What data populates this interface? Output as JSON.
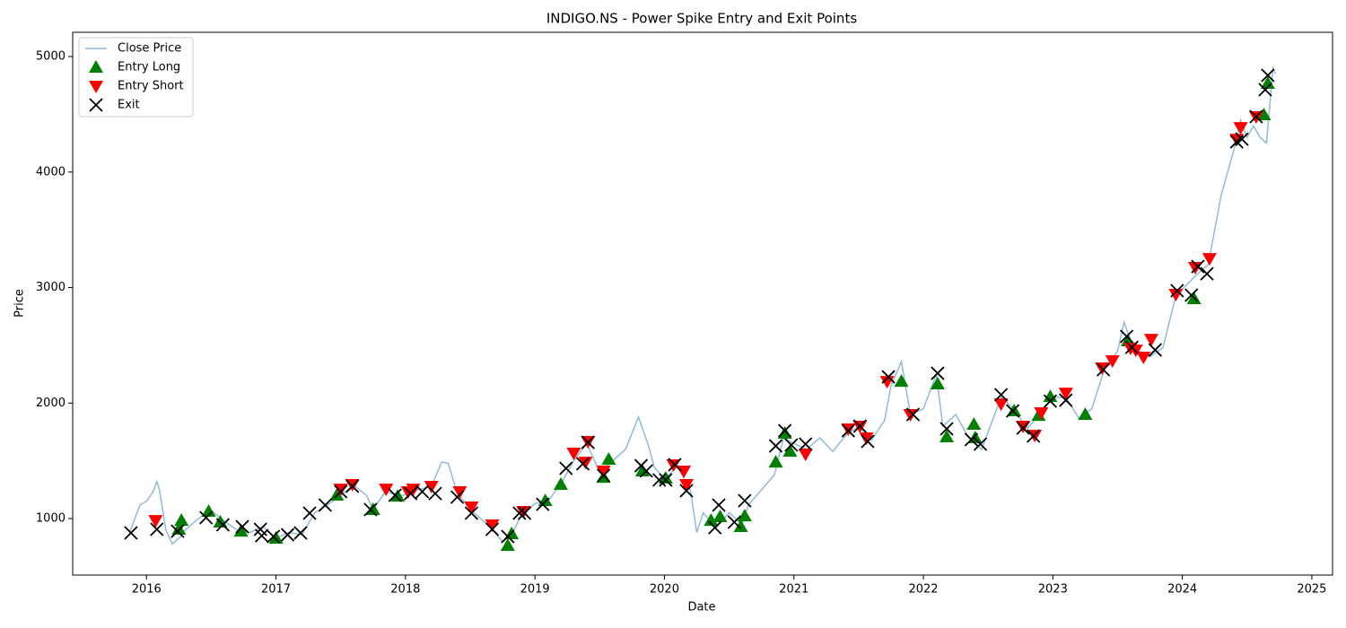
{
  "chart_data": {
    "type": "line",
    "title": "INDIGO.NS - Power Spike Entry and Exit Points",
    "xlabel": "Date",
    "ylabel": "Price",
    "xlim": [
      2015.43,
      2025.16
    ],
    "xticks": [
      2016,
      2017,
      2018,
      2019,
      2020,
      2021,
      2022,
      2023,
      2024,
      2025
    ],
    "ylim": [
      511,
      5210
    ],
    "yticks": [
      1000,
      2000,
      3000,
      4000,
      5000
    ],
    "grid": false,
    "legend": "upper left",
    "series": [
      {
        "name": "Close Price",
        "marker": "line",
        "color": "#1f77b4",
        "x": [
          2015.87,
          2015.95,
          2016.0,
          2016.05,
          2016.08,
          2016.1,
          2016.15,
          2016.2,
          2016.25,
          2016.3,
          2016.4,
          2016.5,
          2016.6,
          2016.7,
          2016.8,
          2016.9,
          2017.0,
          2017.1,
          2017.2,
          2017.3,
          2017.4,
          2017.5,
          2017.6,
          2017.7,
          2017.75,
          2017.85,
          2017.95,
          2018.1,
          2018.2,
          2018.28,
          2018.33,
          2018.4,
          2018.5,
          2018.65,
          2018.75,
          2018.82,
          2018.9,
          2019.0,
          2019.1,
          2019.2,
          2019.3,
          2019.4,
          2019.5,
          2019.6,
          2019.7,
          2019.8,
          2019.88,
          2019.92,
          2020.0,
          2020.1,
          2020.2,
          2020.25,
          2020.3,
          2020.4,
          2020.5,
          2020.6,
          2020.65,
          2020.75,
          2020.85,
          2020.92,
          2021.0,
          2021.1,
          2021.2,
          2021.3,
          2021.4,
          2021.5,
          2021.6,
          2021.7,
          2021.75,
          2021.83,
          2021.9,
          2022.0,
          2022.1,
          2022.15,
          2022.25,
          2022.35,
          2022.45,
          2022.6,
          2022.7,
          2022.8,
          2022.9,
          2023.0,
          2023.1,
          2023.2,
          2023.3,
          2023.4,
          2023.5,
          2023.55,
          2023.62,
          2023.75,
          2023.85,
          2023.95,
          2024.1,
          2024.2,
          2024.25,
          2024.3,
          2024.4,
          2024.45,
          2024.5,
          2024.55,
          2024.6,
          2024.65,
          2024.7,
          2024.72
        ],
        "values": [
          880,
          1120,
          1150,
          1230,
          1320,
          1250,
          900,
          780,
          830,
          900,
          1000,
          1070,
          980,
          900,
          880,
          930,
          830,
          880,
          860,
          1050,
          1120,
          1200,
          1290,
          1200,
          1080,
          1240,
          1190,
          1250,
          1280,
          1490,
          1480,
          1220,
          1080,
          930,
          800,
          860,
          1040,
          1130,
          1150,
          1300,
          1500,
          1650,
          1400,
          1500,
          1600,
          1880,
          1620,
          1450,
          1340,
          1450,
          1250,
          880,
          1050,
          920,
          1050,
          950,
          1120,
          1250,
          1380,
          1700,
          1650,
          1600,
          1700,
          1580,
          1720,
          1800,
          1680,
          1850,
          2150,
          2360,
          1900,
          1950,
          2250,
          1800,
          1900,
          1700,
          1600,
          2050,
          1950,
          1780,
          1900,
          2050,
          2050,
          1870,
          1950,
          2300,
          2450,
          2700,
          2480,
          2400,
          2480,
          2930,
          3100,
          3200,
          3500,
          3800,
          4200,
          4450,
          4300,
          4400,
          4300,
          4250,
          4900,
          4850
        ]
      },
      {
        "name": "Entry Long",
        "marker": "^",
        "color": "green",
        "x": [
          2016.25,
          2016.27,
          2016.48,
          2016.57,
          2016.73,
          2017.0,
          2017.47,
          2017.75,
          2017.94,
          2018.79,
          2018.82,
          2019.08,
          2019.2,
          2019.53,
          2019.57,
          2019.83,
          2020.01,
          2020.36,
          2020.43,
          2020.59,
          2020.62,
          2020.86,
          2020.93,
          2020.97,
          2021.83,
          2022.11,
          2022.18,
          2022.39,
          2022.4,
          2022.7,
          2022.89,
          2022.98,
          2023.25,
          2023.58,
          2024.09,
          2024.63,
          2024.66
        ],
        "values": [
          907,
          984,
          1062,
          969,
          891,
          829,
          1202,
          1078,
          1194,
          767,
          868,
          1155,
          1295,
          1357,
          1513,
          1412,
          1350,
          984,
          1016,
          930,
          1023,
          1489,
          1738,
          1583,
          2188,
          2165,
          1707,
          1816,
          1699,
          1932,
          1893,
          2056,
          1901,
          2538,
          2903,
          4495,
          4767
        ]
      },
      {
        "name": "Entry Short",
        "marker": "v",
        "color": "red",
        "x": [
          2016.07,
          2017.5,
          2017.59,
          2017.85,
          2018.02,
          2018.06,
          2018.2,
          2018.42,
          2018.51,
          2018.67,
          2018.91,
          2019.3,
          2019.39,
          2019.41,
          2019.53,
          2020.07,
          2020.15,
          2020.17,
          2021.09,
          2021.42,
          2021.51,
          2021.56,
          2021.72,
          2021.9,
          2022.6,
          2022.77,
          2022.86,
          2022.91,
          2023.1,
          2023.38,
          2023.46,
          2023.6,
          2023.64,
          2023.7,
          2023.76,
          2023.95,
          2024.1,
          2024.21,
          2024.42,
          2024.45,
          2024.57
        ],
        "values": [
          984,
          1256,
          1295,
          1256,
          1233,
          1256,
          1280,
          1233,
          1101,
          946,
          1062,
          1567,
          1489,
          1668,
          1412,
          1466,
          1412,
          1295,
          1559,
          1777,
          1800,
          1699,
          2188,
          1901,
          1994,
          1800,
          1722,
          1917,
          2087,
          2305,
          2367,
          2476,
          2460,
          2398,
          2553,
          2942,
          3175,
          3252,
          4285,
          4386,
          4480
        ]
      },
      {
        "name": "Exit",
        "marker": "x",
        "color": "black",
        "x": [
          2015.88,
          2016.08,
          2016.24,
          2016.46,
          2016.59,
          2016.74,
          2016.88,
          2016.89,
          2016.98,
          2017.09,
          2017.19,
          2017.26,
          2017.38,
          2017.5,
          2017.59,
          2017.73,
          2017.92,
          2018.04,
          2018.13,
          2018.23,
          2018.4,
          2018.51,
          2018.67,
          2018.79,
          2018.88,
          2018.92,
          2019.06,
          2019.24,
          2019.37,
          2019.41,
          2019.53,
          2019.82,
          2019.86,
          2019.96,
          2020.01,
          2020.08,
          2020.17,
          2020.39,
          2020.42,
          2020.54,
          2020.62,
          2020.86,
          2020.93,
          2020.98,
          2021.09,
          2021.42,
          2021.51,
          2021.57,
          2021.73,
          2021.92,
          2022.11,
          2022.18,
          2022.37,
          2022.44,
          2022.6,
          2022.69,
          2022.77,
          2022.85,
          2022.98,
          2023.1,
          2023.39,
          2023.57,
          2023.61,
          2023.79,
          2023.96,
          2024.07,
          2024.12,
          2024.19,
          2024.42,
          2024.46,
          2024.57,
          2024.64,
          2024.66
        ],
        "values": [
          876,
          907,
          891,
          1008,
          946,
          930,
          907,
          852,
          845,
          860,
          876,
          1047,
          1117,
          1233,
          1280,
          1078,
          1202,
          1217,
          1233,
          1217,
          1186,
          1047,
          907,
          845,
          1047,
          1047,
          1124,
          1435,
          1474,
          1660,
          1373,
          1458,
          1412,
          1334,
          1334,
          1466,
          1241,
          922,
          1117,
          969,
          1155,
          1629,
          1761,
          1637,
          1645,
          1761,
          1800,
          1668,
          2227,
          1901,
          2258,
          1777,
          1684,
          1645,
          2072,
          1932,
          1784,
          1715,
          2017,
          2025,
          2289,
          2577,
          2483,
          2460,
          2973,
          2934,
          3182,
          3120,
          4262,
          4285,
          4480,
          4713,
          4837
        ]
      }
    ]
  }
}
